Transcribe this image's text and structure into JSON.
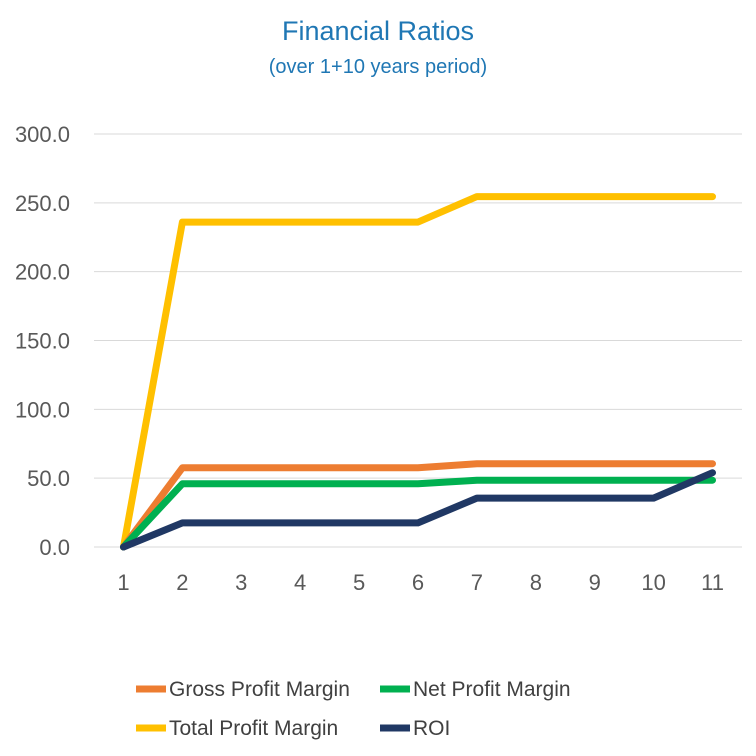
{
  "chart_data": {
    "type": "line",
    "title": "Financial Ratios",
    "subtitle": "(over 1+10 years period)",
    "xlabel": "",
    "ylabel": "",
    "categories": [
      "1",
      "2",
      "3",
      "4",
      "5",
      "6",
      "7",
      "8",
      "9",
      "10",
      "11"
    ],
    "ylim": [
      0,
      300
    ],
    "yticks": [
      "0.0",
      "50.0",
      "100.0",
      "150.0",
      "200.0",
      "250.0",
      "300.0"
    ],
    "grid": true,
    "legend_position": "bottom",
    "series": [
      {
        "name": "Gross Profit Margin",
        "color": "#ed7d31",
        "values": [
          0,
          57.5,
          57.5,
          57.5,
          57.5,
          57.5,
          60.5,
          60.5,
          60.5,
          60.5,
          60.5
        ]
      },
      {
        "name": "Net Profit Margin",
        "color": "#00b050",
        "values": [
          0,
          46,
          46,
          46,
          46,
          46,
          48.5,
          48.5,
          48.5,
          48.5,
          48.5
        ]
      },
      {
        "name": "Total Profit Margin",
        "color": "#ffc000",
        "values": [
          0,
          236,
          236,
          236,
          236,
          236,
          254.5,
          254.5,
          254.5,
          254.5,
          254.5
        ]
      },
      {
        "name": "ROI",
        "color": "#203864",
        "values": [
          0,
          17.5,
          17.5,
          17.5,
          17.5,
          17.5,
          35.5,
          35.5,
          35.5,
          35.5,
          54
        ]
      }
    ]
  }
}
